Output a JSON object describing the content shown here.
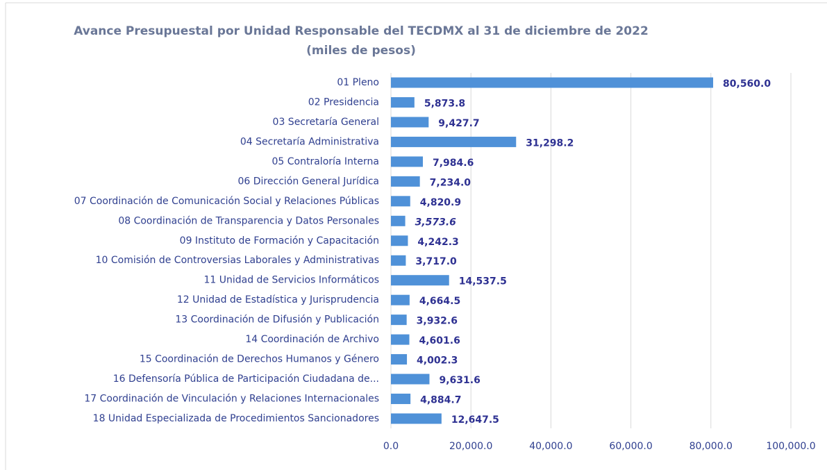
{
  "chart_data": {
    "type": "barh",
    "title": "Avance Presupuestal por Unidad Responsable del TECDMX al 31 de diciembre de 2022",
    "subtitle": "(miles de pesos)",
    "categories": [
      "01 Pleno",
      "02 Presidencia",
      "03 Secretaría General",
      "04 Secretaría Administrativa",
      "05 Contraloría Interna",
      "06 Dirección General Jurídica",
      "07 Coordinación de Comunicación Social y Relaciones Públicas",
      "08 Coordinación de Transparencia y Datos Personales",
      "09 Instituto de Formación y Capacitación",
      "10 Comisión de Controversias Laborales y Administrativas",
      "11 Unidad de Servicios Informáticos",
      "12 Unidad de Estadística y Jurisprudencia",
      "13 Coordinación de Difusión y Publicación",
      "14 Coordinación de Archivo",
      "15 Coordinación de Derechos Humanos y Género",
      "16 Defensoría Pública de Participación Ciudadana de...",
      "17 Coordinación de Vinculación y Relaciones Internacionales",
      "18 Unidad Especializada de Procedimientos Sancionadores"
    ],
    "values": [
      80560.0,
      5873.8,
      9427.7,
      31298.2,
      7984.6,
      7234.0,
      4820.9,
      3573.6,
      4242.3,
      3717.0,
      14537.5,
      4664.5,
      3932.6,
      4601.6,
      4002.3,
      9631.6,
      4884.7,
      12647.5
    ],
    "value_labels": [
      "80,560.0",
      "5,873.8",
      "9,427.7",
      "31,298.2",
      "7,984.6",
      "7,234.0",
      "4,820.9",
      "3,573.6",
      "4,242.3",
      "3,717.0",
      "14,537.5",
      "4,664.5",
      "3,932.6",
      "4,601.6",
      "4,002.3",
      "9,631.6",
      "4,884.7",
      "12,647.5"
    ],
    "color": "#4f91d8",
    "xlim": [
      0,
      100000
    ],
    "xticks": [
      {
        "value": 0,
        "label": "0.0"
      },
      {
        "value": 20000,
        "label": "20,000.0"
      },
      {
        "value": 40000,
        "label": "40,000.0"
      },
      {
        "value": 60000,
        "label": "60,000.0"
      },
      {
        "value": 80000,
        "label": "80,000.0"
      },
      {
        "value": 100000,
        "label": "100,000.0"
      }
    ],
    "grid": true
  }
}
